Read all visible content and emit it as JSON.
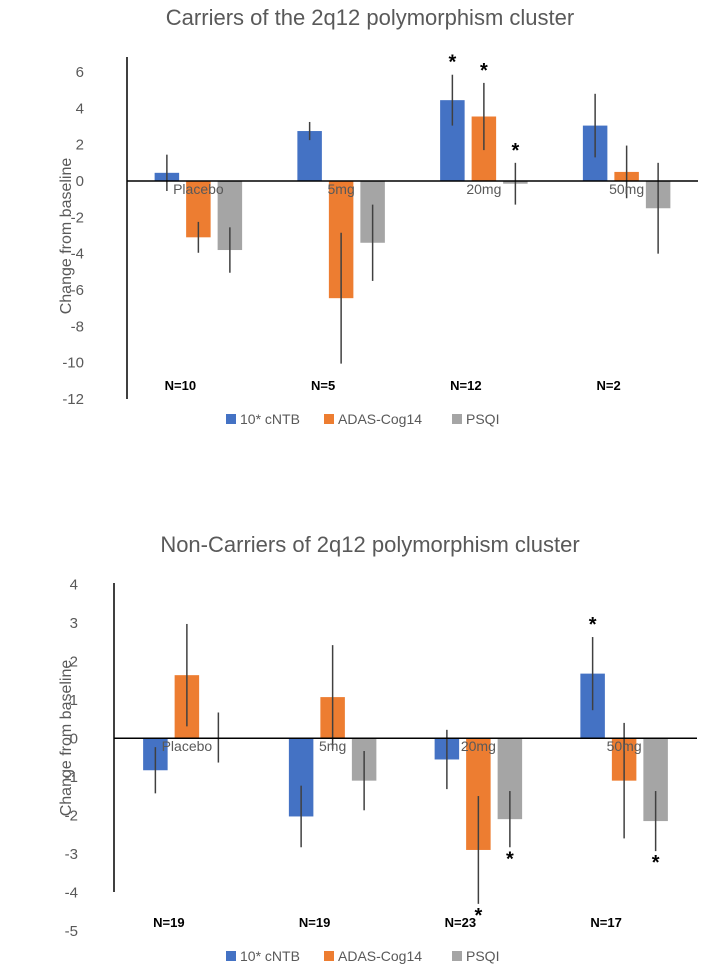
{
  "colors": {
    "series_1": "#4472C4",
    "series_2": "#ED7D31",
    "series_3": "#A5A5A5",
    "axis": "#000000",
    "errorbar": "#404040",
    "text": "#595959"
  },
  "chart_data": [
    {
      "type": "bar",
      "title": "Carriers of the 2q12 polymorphism cluster",
      "xlabel": "",
      "ylabel": "Change from baseline",
      "ylim": [
        -12,
        7
      ],
      "yticks": [
        6,
        4,
        2,
        0,
        -2,
        -4,
        -6,
        -8,
        -10,
        -12
      ],
      "ytick_labels": [
        "6",
        "4",
        "2",
        "0",
        "-2",
        "-4",
        "-6",
        "-8",
        "-10",
        "-12"
      ],
      "grid": false,
      "legend_position": "bottom",
      "categories": [
        "Placebo",
        "5mg",
        "20mg",
        "50mg"
      ],
      "n_labels": [
        "N=10",
        "N=5",
        "N=12",
        "N=2"
      ],
      "series": [
        {
          "name": "10* cNTB",
          "values": [
            0.45,
            2.75,
            4.45,
            3.05
          ],
          "errors": [
            1.0,
            0.5,
            1.4,
            1.75
          ],
          "significant": [
            false,
            false,
            true,
            false
          ]
        },
        {
          "name": "ADAS-Cog14",
          "values": [
            -3.1,
            -6.45,
            3.55,
            0.5
          ],
          "errors": [
            0.85,
            3.6,
            1.85,
            1.45
          ],
          "significant": [
            false,
            false,
            true,
            false
          ]
        },
        {
          "name": "PSQI",
          "values": [
            -3.8,
            -3.4,
            -0.15,
            -1.5
          ],
          "errors": [
            1.25,
            2.1,
            1.15,
            2.5
          ],
          "significant": [
            false,
            false,
            true,
            false
          ]
        }
      ],
      "significance_marker": "*"
    },
    {
      "type": "bar",
      "title": "Non-Carriers of 2q12 polymorphism cluster",
      "xlabel": "",
      "ylabel": "Change from baseline",
      "ylim": [
        -5,
        4
      ],
      "yticks": [
        4,
        3,
        2,
        1,
        0,
        -1,
        -2,
        -3,
        -4,
        -5
      ],
      "ytick_labels": [
        "4",
        "3",
        "2",
        "1",
        "0",
        "-1",
        "-2",
        "-3",
        "-4",
        "-5"
      ],
      "grid": false,
      "legend_position": "bottom",
      "categories": [
        "Placebo",
        "5mg",
        "20mg",
        "50mg"
      ],
      "n_labels": [
        "N=19",
        "N=19",
        "N=23",
        "N=17"
      ],
      "series": [
        {
          "name": "10* cNTB",
          "values": [
            -0.83,
            -2.03,
            -0.55,
            1.68
          ],
          "errors": [
            0.6,
            0.8,
            0.77,
            0.95
          ],
          "significant": [
            false,
            false,
            false,
            true
          ]
        },
        {
          "name": "ADAS-Cog14",
          "values": [
            1.64,
            1.07,
            -2.9,
            -1.1
          ],
          "errors": [
            1.33,
            1.35,
            1.4,
            1.5
          ],
          "significant": [
            false,
            false,
            true,
            false
          ]
        },
        {
          "name": "PSQI",
          "values": [
            0.02,
            -1.1,
            -2.1,
            -2.15
          ],
          "errors": [
            0.65,
            0.77,
            0.73,
            0.78
          ],
          "significant": [
            false,
            false,
            true,
            true
          ]
        }
      ],
      "significance_marker": "*"
    }
  ]
}
